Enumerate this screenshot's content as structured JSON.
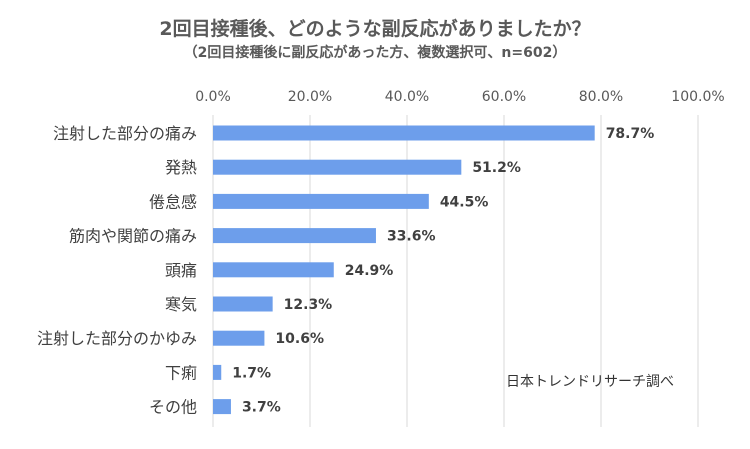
{
  "chart_data": {
    "type": "bar",
    "orientation": "horizontal",
    "title": "2回目接種後、どのような副反応がありましたか？",
    "subtitle": "（2回目接種後に副反応があった方、複数選択可、n=602）",
    "categories": [
      "注射した部分の痛み",
      "発熱",
      "倦怠感",
      "筋肉や関節の痛み",
      "頭痛",
      "寒気",
      "注射した部分のかゆみ",
      "下痢",
      "その他"
    ],
    "values": [
      78.7,
      51.2,
      44.5,
      33.6,
      24.9,
      12.3,
      10.6,
      1.7,
      3.7
    ],
    "data_labels": [
      "78.7%",
      "51.2%",
      "44.5%",
      "33.6%",
      "24.9%",
      "12.3%",
      "10.6%",
      "1.7%",
      "3.7%"
    ],
    "xlim": [
      0,
      100
    ],
    "x_ticks": [
      0,
      20,
      40,
      60,
      80,
      100
    ],
    "x_tick_labels": [
      "0.0%",
      "20.0%",
      "40.0%",
      "60.0%",
      "80.0%",
      "100.0%"
    ],
    "axis_position": "top",
    "grid": true,
    "bar_color": "#6d9eeb",
    "grid_color": "#d9d9d9",
    "annotation": "日本トレンドリサーチ調べ"
  }
}
